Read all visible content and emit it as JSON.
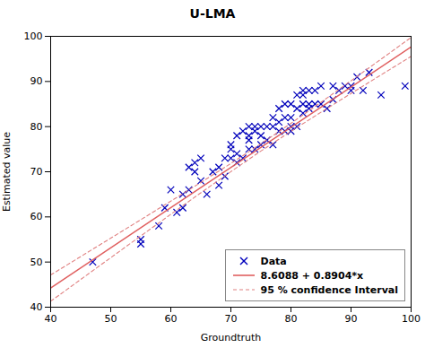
{
  "chart_data": {
    "type": "scatter",
    "title": "U-LMA",
    "xlabel": "Groundtruth",
    "ylabel": "Estimated value",
    "xlim": [
      40,
      100
    ],
    "ylim": [
      40,
      100
    ],
    "xticks": [
      40,
      50,
      60,
      70,
      80,
      90,
      100
    ],
    "yticks": [
      40,
      50,
      60,
      70,
      80,
      90,
      100
    ],
    "legend": "lower right",
    "series": [
      {
        "name": "Data",
        "type": "scatter",
        "marker": "x",
        "color": "#0000bb",
        "x": [
          47,
          55,
          55,
          58,
          59,
          60,
          61,
          62,
          62,
          63,
          63,
          64,
          64,
          65,
          65,
          66,
          67,
          68,
          68,
          69,
          69,
          70,
          70,
          70,
          71,
          71,
          71,
          72,
          72,
          73,
          73,
          73,
          73,
          74,
          74,
          74,
          75,
          75,
          75,
          76,
          76,
          77,
          77,
          77,
          78,
          78,
          78,
          79,
          79,
          79,
          80,
          80,
          80,
          80,
          81,
          81,
          81,
          82,
          82,
          82,
          82,
          83,
          83,
          83,
          84,
          84,
          85,
          85,
          86,
          87,
          87,
          88,
          89,
          90,
          90,
          91,
          92,
          93,
          95,
          99
        ],
        "values": [
          50,
          54,
          55,
          58,
          62,
          66,
          61,
          62,
          65,
          66,
          71,
          70,
          72,
          68,
          73,
          65,
          70,
          67,
          71,
          69,
          73,
          73,
          75,
          76,
          72,
          74,
          78,
          73,
          79,
          75,
          77,
          78,
          80,
          75,
          79,
          80,
          76,
          78,
          80,
          77,
          80,
          76,
          80,
          82,
          79,
          81,
          84,
          79,
          82,
          85,
          79,
          80,
          82,
          85,
          80,
          84,
          87,
          83,
          85,
          87,
          88,
          84,
          85,
          88,
          85,
          88,
          85,
          89,
          84,
          86,
          89,
          88,
          89,
          88,
          89,
          91,
          88,
          92,
          87,
          89
        ]
      },
      {
        "name": "8.6088 + 0.8904*x",
        "type": "line",
        "line_style": "solid",
        "color": "#e06060",
        "x": [
          40,
          100
        ],
        "values": [
          44.2248,
          97.6488
        ]
      },
      {
        "name": "95 % confidence Interval",
        "type": "line",
        "line_style": "dashed",
        "color": "#e08080",
        "x": [
          40,
          45,
          50,
          55,
          60,
          65,
          70,
          75,
          80,
          85,
          90,
          95,
          100
        ],
        "upper": [
          47.14,
          51.21,
          55.29,
          59.38,
          63.49,
          67.63,
          71.84,
          76.19,
          80.72,
          85.39,
          90.15,
          94.94,
          99.75
        ],
        "lower": [
          41.31,
          46.14,
          50.97,
          55.78,
          60.58,
          65.34,
          70.03,
          74.59,
          78.96,
          83.19,
          87.34,
          91.46,
          95.55
        ]
      }
    ]
  }
}
